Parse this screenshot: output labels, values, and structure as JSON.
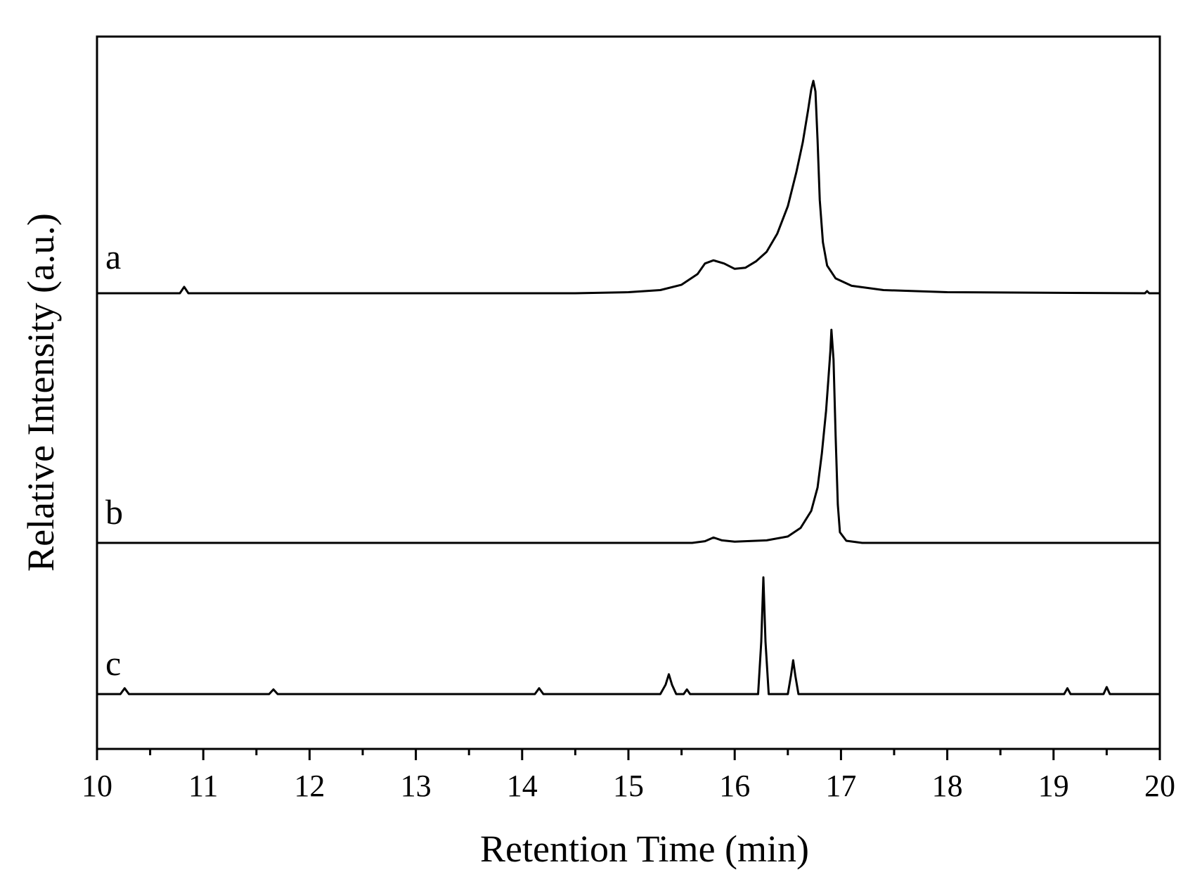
{
  "chart_data": {
    "type": "line",
    "title": "",
    "xlabel": "Retention Time (min)",
    "ylabel": "Relative Intensity (a.u.)",
    "xlim": [
      10,
      20
    ],
    "xticks": [
      "10",
      "11",
      "12",
      "13",
      "14",
      "15",
      "16",
      "17",
      "18",
      "19",
      "20"
    ],
    "y_ticks_shown": false,
    "grid": false,
    "legend": "none",
    "stacked_offset_traces": true,
    "series": [
      {
        "name": "a",
        "baseline": 0.0,
        "points": [
          [
            10.0,
            0.0
          ],
          [
            10.78,
            0.0
          ],
          [
            10.82,
            0.03
          ],
          [
            10.86,
            0.0
          ],
          [
            14.5,
            0.0
          ],
          [
            15.0,
            0.005
          ],
          [
            15.3,
            0.015
          ],
          [
            15.5,
            0.04
          ],
          [
            15.65,
            0.09
          ],
          [
            15.72,
            0.14
          ],
          [
            15.8,
            0.155
          ],
          [
            15.9,
            0.14
          ],
          [
            16.0,
            0.115
          ],
          [
            16.1,
            0.12
          ],
          [
            16.2,
            0.15
          ],
          [
            16.3,
            0.195
          ],
          [
            16.4,
            0.28
          ],
          [
            16.5,
            0.41
          ],
          [
            16.58,
            0.57
          ],
          [
            16.64,
            0.71
          ],
          [
            16.69,
            0.86
          ],
          [
            16.72,
            0.96
          ],
          [
            16.74,
            1.0
          ],
          [
            16.76,
            0.95
          ],
          [
            16.78,
            0.72
          ],
          [
            16.8,
            0.44
          ],
          [
            16.83,
            0.24
          ],
          [
            16.87,
            0.13
          ],
          [
            16.95,
            0.07
          ],
          [
            17.1,
            0.035
          ],
          [
            17.4,
            0.015
          ],
          [
            18.0,
            0.005
          ],
          [
            19.86,
            0.0
          ],
          [
            19.88,
            0.01
          ],
          [
            19.9,
            0.0
          ],
          [
            20.0,
            0.0
          ]
        ]
      },
      {
        "name": "b",
        "baseline": 0.0,
        "points": [
          [
            10.0,
            0.0
          ],
          [
            15.6,
            0.0
          ],
          [
            15.72,
            0.008
          ],
          [
            15.8,
            0.025
          ],
          [
            15.88,
            0.012
          ],
          [
            16.0,
            0.006
          ],
          [
            16.3,
            0.012
          ],
          [
            16.5,
            0.03
          ],
          [
            16.62,
            0.07
          ],
          [
            16.72,
            0.15
          ],
          [
            16.78,
            0.26
          ],
          [
            16.82,
            0.42
          ],
          [
            16.86,
            0.62
          ],
          [
            16.88,
            0.76
          ],
          [
            16.9,
            0.9
          ],
          [
            16.91,
            1.0
          ],
          [
            16.93,
            0.86
          ],
          [
            16.95,
            0.5
          ],
          [
            16.97,
            0.18
          ],
          [
            16.99,
            0.05
          ],
          [
            17.05,
            0.01
          ],
          [
            17.2,
            0.0
          ],
          [
            20.0,
            0.0
          ]
        ]
      },
      {
        "name": "c",
        "baseline": 0.0,
        "points": [
          [
            10.0,
            0.0
          ],
          [
            10.22,
            0.0
          ],
          [
            10.26,
            0.05
          ],
          [
            10.3,
            0.0
          ],
          [
            11.62,
            0.0
          ],
          [
            11.66,
            0.04
          ],
          [
            11.7,
            0.0
          ],
          [
            14.12,
            0.0
          ],
          [
            14.16,
            0.05
          ],
          [
            14.2,
            0.0
          ],
          [
            15.3,
            0.0
          ],
          [
            15.35,
            0.08
          ],
          [
            15.38,
            0.17
          ],
          [
            15.41,
            0.08
          ],
          [
            15.45,
            0.0
          ],
          [
            15.52,
            0.0
          ],
          [
            15.55,
            0.04
          ],
          [
            15.58,
            0.0
          ],
          [
            16.22,
            0.0
          ],
          [
            16.25,
            0.45
          ],
          [
            16.27,
            1.0
          ],
          [
            16.29,
            0.45
          ],
          [
            16.32,
            0.0
          ],
          [
            16.5,
            0.0
          ],
          [
            16.53,
            0.16
          ],
          [
            16.55,
            0.29
          ],
          [
            16.57,
            0.16
          ],
          [
            16.6,
            0.0
          ],
          [
            19.1,
            0.0
          ],
          [
            19.13,
            0.05
          ],
          [
            19.16,
            0.0
          ],
          [
            19.47,
            0.0
          ],
          [
            19.5,
            0.06
          ],
          [
            19.53,
            0.0
          ],
          [
            20.0,
            0.0
          ]
        ]
      }
    ]
  }
}
